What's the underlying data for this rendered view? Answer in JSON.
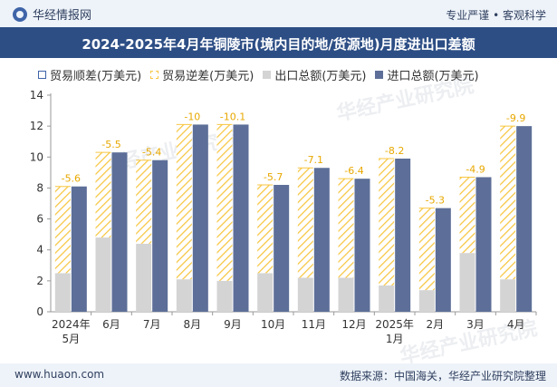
{
  "header": {
    "brand": "华经情报网",
    "tagline": "专业严谨 • 客观科学"
  },
  "watermark": "华经产业研究院",
  "footer": {
    "site": "www.huaon.com",
    "source": "数据来源：中国海关，华经产业研究院整理"
  },
  "colors": {
    "import": "#5d6f98",
    "export": "#d4d4d4",
    "deficit": "#f7c641",
    "surplus": "#3f64a8"
  },
  "chart_data": {
    "type": "bar",
    "title": "2024-2025年4月年铜陵市(境内目的地/货源地)月度进出口差额",
    "legend": [
      "贸易顺差(万美元)",
      "贸易逆差(万美元)",
      "出口总额(万美元)",
      "进口总额(万美元)"
    ],
    "categories": [
      "2024年5月",
      "6月",
      "7月",
      "8月",
      "9月",
      "10月",
      "11月",
      "12月",
      "2025年1月",
      "2月",
      "3月",
      "4月"
    ],
    "series": [
      {
        "name": "出口总额(万美元)",
        "values": [
          2.5,
          4.8,
          4.4,
          2.1,
          2.0,
          2.5,
          2.2,
          2.2,
          1.7,
          1.4,
          3.8,
          2.1
        ]
      },
      {
        "name": "进口总额(万美元)",
        "values": [
          8.1,
          10.3,
          9.8,
          12.1,
          12.1,
          8.2,
          9.3,
          8.6,
          9.9,
          6.7,
          8.7,
          12.0
        ]
      },
      {
        "name": "贸易逆差(万美元)",
        "values": [
          -5.6,
          -5.5,
          -5.4,
          -10,
          -10.1,
          -5.7,
          -7.1,
          -6.4,
          -8.2,
          -5.3,
          -4.9,
          -9.9
        ]
      }
    ],
    "deficit_labels": [
      "-5.6",
      "-5.5",
      "-5.4",
      "-10",
      "-10.1",
      "-5.7",
      "-7.1",
      "-6.4",
      "-8.2",
      "-5.3",
      "-4.9",
      "-9.9"
    ],
    "ylim": [
      0,
      14
    ],
    "yticks": [
      0,
      2,
      4,
      6,
      8,
      10,
      12,
      14
    ],
    "grid": false
  }
}
